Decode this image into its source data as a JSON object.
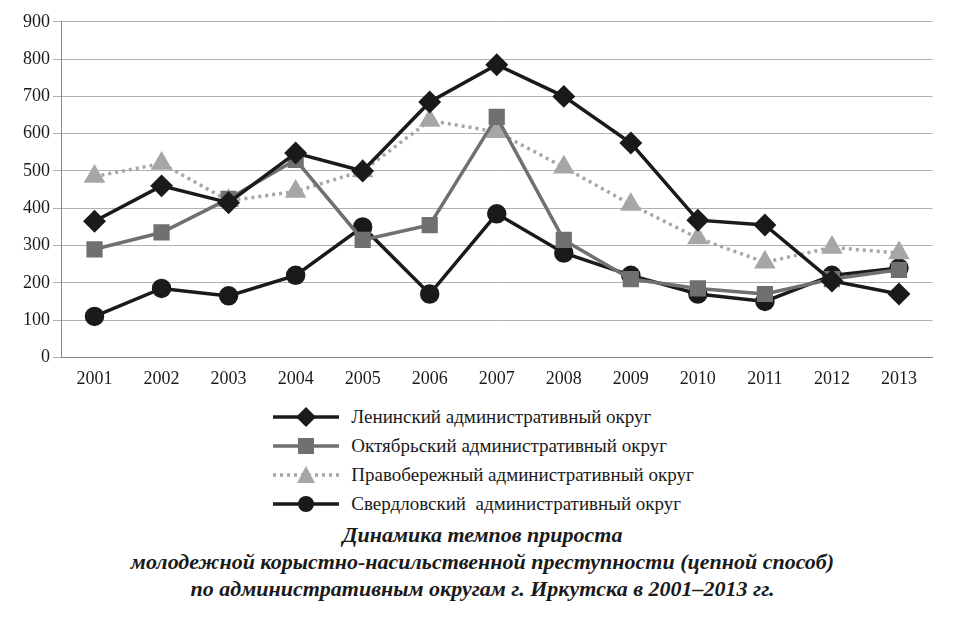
{
  "chart_data": {
    "type": "line",
    "title": "Динамика темпов прироста\nмолодежной корыстно-насильственной преступности (цепной способ)\nпо административным округам г. Иркутска в 2001–2013 гг.",
    "categories": [
      "2001",
      "2002",
      "2003",
      "2004",
      "2005",
      "2006",
      "2007",
      "2008",
      "2009",
      "2010",
      "2011",
      "2012",
      "2013"
    ],
    "series": [
      {
        "name": "Ленинский административный округ",
        "color": "#1a1a1a",
        "marker": "diamond",
        "line_style": "solid",
        "values": [
          365,
          460,
          415,
          548,
          500,
          685,
          785,
          700,
          575,
          368,
          355,
          205,
          170
        ]
      },
      {
        "name": "Октябрьский административный округ",
        "color": "#707070",
        "marker": "square",
        "line_style": "solid",
        "values": [
          290,
          335,
          425,
          530,
          315,
          355,
          645,
          315,
          210,
          185,
          170,
          210,
          235
        ]
      },
      {
        "name": "Правобережный административный округ",
        "color": "#a6a6a6",
        "marker": "triangle",
        "line_style": "dotted",
        "values": [
          485,
          520,
          420,
          445,
          500,
          635,
          605,
          510,
          410,
          320,
          255,
          295,
          280
        ]
      },
      {
        "name": "Свердловский  административный округ",
        "color": "#1a1a1a",
        "marker": "circle",
        "line_style": "solid",
        "values": [
          110,
          185,
          165,
          220,
          350,
          170,
          385,
          280,
          220,
          170,
          150,
          220,
          240
        ]
      }
    ],
    "ylim": [
      0,
      900
    ],
    "yticks": [
      0,
      100,
      200,
      300,
      400,
      500,
      600,
      700,
      800,
      900
    ],
    "grid": true,
    "legend": "bottom"
  }
}
